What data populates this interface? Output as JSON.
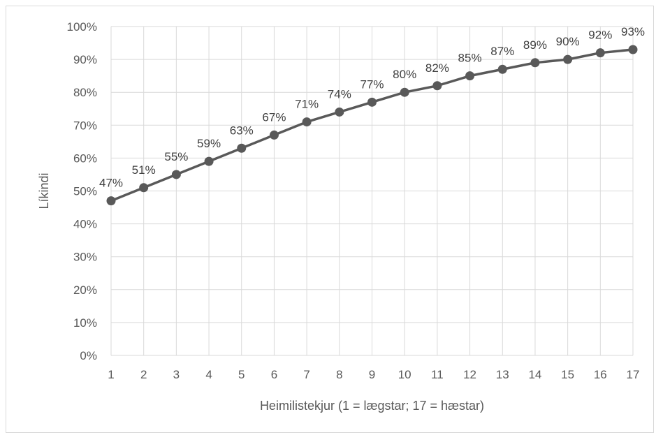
{
  "chart_data": {
    "type": "line",
    "title": "",
    "xlabel": "Heimilistekjur (1 = lægstar; 17 = hæstar)",
    "ylabel": "Líkindi",
    "x": [
      1,
      2,
      3,
      4,
      5,
      6,
      7,
      8,
      9,
      10,
      11,
      12,
      13,
      14,
      15,
      16,
      17
    ],
    "x_tick_labels": [
      "1",
      "2",
      "3",
      "4",
      "5",
      "6",
      "7",
      "8",
      "9",
      "10",
      "11",
      "12",
      "13",
      "14",
      "15",
      "16",
      "17"
    ],
    "ylim": [
      0,
      100
    ],
    "y_ticks": [
      0,
      10,
      20,
      30,
      40,
      50,
      60,
      70,
      80,
      90,
      100
    ],
    "y_tick_labels": [
      "0%",
      "10%",
      "20%",
      "30%",
      "40%",
      "50%",
      "60%",
      "70%",
      "80%",
      "90%",
      "100%"
    ],
    "grid": true,
    "legend": "none",
    "series": [
      {
        "values": [
          47,
          51,
          55,
          59,
          63,
          67,
          71,
          74,
          77,
          80,
          82,
          85,
          87,
          89,
          90,
          92,
          93
        ],
        "labels": [
          "47%",
          "51%",
          "55%",
          "59%",
          "63%",
          "67%",
          "71%",
          "74%",
          "77%",
          "80%",
          "82%",
          "85%",
          "87%",
          "89%",
          "90%",
          "92%",
          "93%"
        ],
        "color": "#595959"
      }
    ]
  }
}
